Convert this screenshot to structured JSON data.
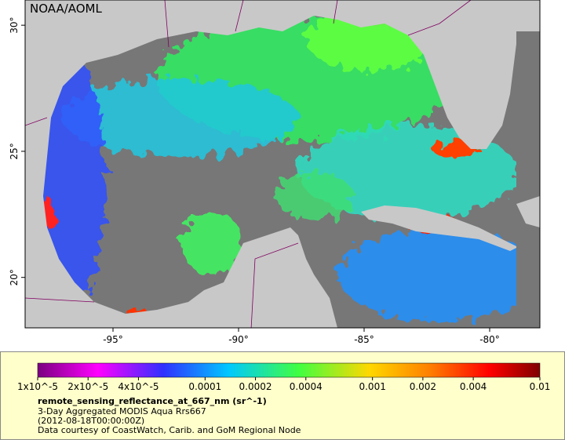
{
  "map": {
    "title": "NOAA/AOML",
    "lonlim": [
      -98.5,
      -78
    ],
    "latlim": [
      18,
      31
    ],
    "lonticks": [
      {
        "value": -95,
        "label": "-95°"
      },
      {
        "value": -90,
        "label": "-90°"
      },
      {
        "value": -85,
        "label": "-85°"
      },
      {
        "value": -80,
        "label": "-80°"
      }
    ],
    "latticks": [
      {
        "value": 20,
        "label": "20°"
      },
      {
        "value": 25,
        "label": "25°"
      },
      {
        "value": 30,
        "label": "30°"
      }
    ]
  },
  "colorbar": {
    "log_scale": true,
    "lim": [
      1e-05,
      0.01
    ],
    "ticks": [
      {
        "value": 1e-05,
        "label": "1x10^-5"
      },
      {
        "value": 2e-05,
        "label": "2x10^-5"
      },
      {
        "value": 4e-05,
        "label": "4x10^-5"
      },
      0.0001,
      0.0002,
      0.0004,
      0.001,
      0.002,
      0.004,
      0.01
    ],
    "variable": "remote_sensing_reflectance_at_667_nm (sr^-1)",
    "product": "3-Day Aggregated MODIS Aqua Rrs667",
    "time": "(2012-08-18T00:00:00Z)",
    "credit": "Data courtesy of CoastWatch, Carib. and GoM Regional Node"
  }
}
